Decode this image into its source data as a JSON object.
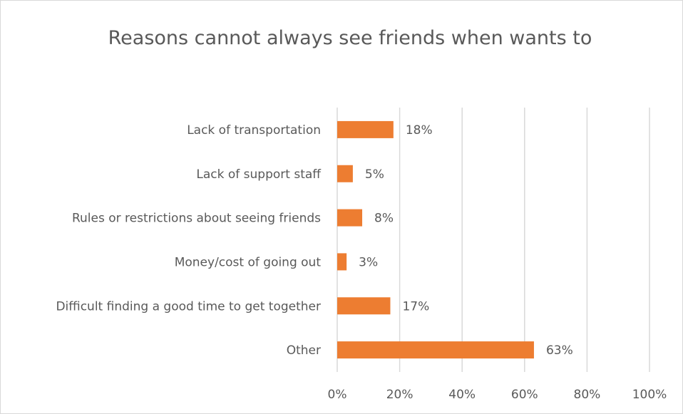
{
  "chart_data": {
    "type": "bar",
    "orientation": "horizontal",
    "title": "Reasons cannot always see friends when wants to",
    "categories": [
      "Lack of transportation",
      "Lack of support staff",
      "Rules or restrictions about seeing friends",
      "Money/cost of going out",
      "Difficult finding a good time to get together",
      "Other"
    ],
    "values": [
      18,
      5,
      8,
      3,
      17,
      63
    ],
    "data_labels": [
      "18%",
      "5%",
      "8%",
      "3%",
      "17%",
      "63%"
    ],
    "xlim": [
      0,
      100
    ],
    "x_ticks": [
      0,
      20,
      40,
      60,
      80,
      100
    ],
    "x_tick_labels": [
      "0%",
      "20%",
      "40%",
      "60%",
      "80%",
      "100%"
    ],
    "grid": "vertical",
    "legend": "none",
    "bar_color": "#ED7D31",
    "grid_color": "#D9D9D9",
    "text_color": "#595959"
  }
}
